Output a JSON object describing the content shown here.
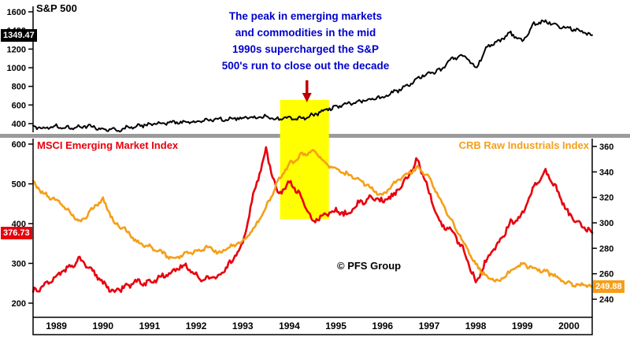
{
  "titles": {
    "sp500": "S&P 500",
    "msci": "MSCI Emerging Market Index",
    "crb": "CRB Raw Industrials Index"
  },
  "annotation": {
    "lines": [
      "The peak in emerging markets",
      "and commodities in the mid",
      "1990s supercharged the S&P",
      "500's run to close out the decade"
    ]
  },
  "watermark": "© PFS Group",
  "badges": {
    "sp500": {
      "value": "1349.47"
    },
    "msci": {
      "value": "376.73"
    },
    "crb": {
      "value": "249.88"
    }
  },
  "colors": {
    "sp500": "#000000",
    "msci": "#e8000d",
    "crb": "#f59f18",
    "highlight": "#ffff00",
    "annotation": "#0000cc",
    "arrow": "#c00000",
    "divider": "#9b9b9b"
  },
  "chart_data": {
    "type": "line",
    "x_start": 1989,
    "x_step": 0.25,
    "x_range": [
      1989,
      2001
    ],
    "x_year_labels": [
      "1989",
      "1990",
      "1991",
      "1992",
      "1993",
      "1994",
      "1995",
      "1996",
      "1997",
      "1998",
      "1999",
      "2000"
    ],
    "highlight_band": {
      "from": 1994.3,
      "to": 1995.35
    },
    "panels": {
      "top": {
        "yticks": [
          400,
          600,
          800,
          1000,
          1200,
          1400,
          1600
        ]
      },
      "bottom": {
        "left_yticks": [
          200,
          300,
          400,
          500,
          600
        ],
        "right_yticks": [
          240,
          260,
          280,
          300,
          320,
          340,
          360
        ]
      }
    },
    "series": [
      {
        "name": "S&P 500",
        "panel": "top",
        "axis": "left",
        "color_key": "sp500",
        "last_value": 1349.47,
        "values": [
          355,
          360,
          370,
          358,
          368,
          372,
          335,
          330,
          352,
          378,
          388,
          406,
          412,
          410,
          418,
          436,
          446,
          452,
          460,
          466,
          472,
          446,
          460,
          455,
          492,
          540,
          580,
          616,
          640,
          668,
          682,
          740,
          792,
          888,
          948,
          970,
          1100,
          1132,
          990,
          1228,
          1282,
          1370,
          1282,
          1468,
          1500,
          1452,
          1430,
          1390,
          1349.47
        ]
      },
      {
        "name": "MSCI Emerging Market Index",
        "panel": "bottom",
        "axis": "left",
        "color_key": "msci",
        "last_value": 376.73,
        "values": [
          228,
          248,
          268,
          288,
          312,
          288,
          248,
          230,
          242,
          256,
          250,
          266,
          282,
          296,
          268,
          258,
          272,
          302,
          352,
          482,
          585,
          470,
          505,
          470,
          405,
          425,
          432,
          422,
          452,
          466,
          456,
          472,
          512,
          562,
          478,
          400,
          382,
          330,
          252,
          312,
          352,
          402,
          422,
          492,
          532,
          482,
          422,
          395,
          376.73
        ]
      },
      {
        "name": "CRB Raw Industrials Index",
        "panel": "bottom",
        "axis": "right",
        "color_key": "crb",
        "last_value": 249.88,
        "values": [
          332,
          322,
          318,
          310,
          300,
          310,
          318,
          300,
          294,
          284,
          281,
          277,
          272,
          275,
          278,
          281,
          276,
          281,
          286,
          296,
          312,
          332,
          346,
          353,
          357,
          348,
          342,
          338,
          334,
          327,
          321,
          331,
          338,
          343,
          335,
          318,
          300,
          284,
          267,
          257,
          254,
          262,
          268,
          264,
          262,
          257,
          252,
          251,
          249.88
        ]
      }
    ]
  }
}
